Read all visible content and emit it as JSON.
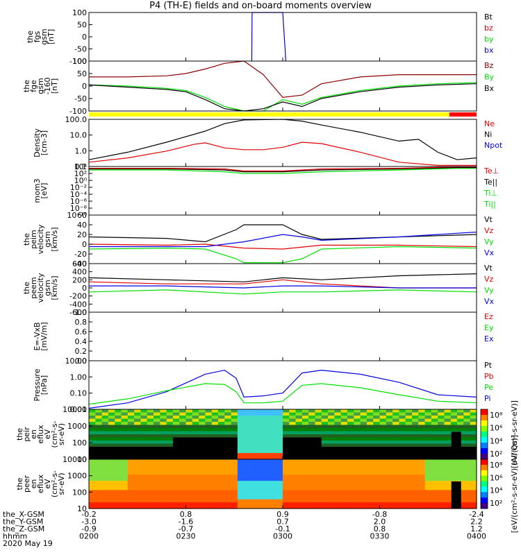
{
  "title": "P4 (TH-E) fields and on-board moments overview",
  "colors": {
    "black": "#000000",
    "red": "#e00000",
    "green": "#00e000",
    "blue": "#0000e0",
    "darkred": "#8b0000",
    "yellow": "#ffff00",
    "barRed": "#ff0000"
  },
  "chart_data": [
    {
      "id": "fgs",
      "type": "line",
      "ylabel": [
        "the",
        "fgs",
        "gsm",
        "[nT]"
      ],
      "ylim": [
        -100,
        100
      ],
      "yticks": [
        "100",
        "50",
        "0",
        "-50",
        "-100"
      ],
      "legend": [
        {
          "name": "Bt",
          "color": "#000000"
        },
        {
          "name": "bz",
          "color": "#e00000"
        },
        {
          "name": "by",
          "color": "#00e000"
        },
        {
          "name": "bx",
          "color": "#0000e0"
        }
      ],
      "series": [
        {
          "name": "bx",
          "color": "#0000e0",
          "x": [
            0.42,
            0.421,
            0.5,
            0.508
          ],
          "y": [
            -100,
            100,
            100,
            -100
          ]
        }
      ]
    },
    {
      "id": "fgs-1",
      "type": "line",
      "ylabel": [
        "the",
        "fge",
        "gsm",
        "-160",
        "[nT]"
      ],
      "ylim": [
        -120,
        100
      ],
      "yticks": [
        "100",
        "50",
        "0",
        "-50",
        "-100"
      ],
      "legend": [
        {
          "name": "Bz",
          "color": "#8b0000"
        },
        {
          "name": "By",
          "color": "#00e000"
        },
        {
          "name": "Bx",
          "color": "#000000"
        }
      ],
      "series": [
        {
          "name": "Bz",
          "color": "#8b0000",
          "x": [
            0,
            0.1,
            0.2,
            0.25,
            0.3,
            0.35,
            0.4,
            0.45,
            0.5,
            0.55,
            0.6,
            0.7,
            0.8,
            0.9,
            1
          ],
          "y": [
            30,
            30,
            35,
            45,
            65,
            90,
            100,
            40,
            -60,
            -50,
            0,
            30,
            40,
            40,
            40
          ]
        },
        {
          "name": "By",
          "color": "#00e000",
          "x": [
            0,
            0.1,
            0.2,
            0.25,
            0.3,
            0.35,
            0.4,
            0.45,
            0.5,
            0.55,
            0.6,
            0.7,
            0.8,
            0.9,
            1
          ],
          "y": [
            -5,
            -10,
            -20,
            -30,
            -60,
            -100,
            -120,
            -120,
            -70,
            -90,
            -60,
            -30,
            -10,
            0,
            5
          ]
        },
        {
          "name": "Bx",
          "color": "#000000",
          "x": [
            0,
            0.1,
            0.2,
            0.25,
            0.3,
            0.35,
            0.4,
            0.45,
            0.5,
            0.55,
            0.6,
            0.7,
            0.8,
            0.9,
            1
          ],
          "y": [
            -5,
            -15,
            -25,
            -35,
            -70,
            -110,
            -120,
            -110,
            -80,
            -100,
            -65,
            -35,
            -15,
            -5,
            0
          ]
        }
      ]
    },
    {
      "id": "density",
      "type": "line",
      "yscale": "log",
      "ylabel": [
        "Density",
        "[cm-3]"
      ],
      "ylim": [
        0.1,
        200
      ],
      "yticks": [
        "100.0",
        "10.0",
        "1.0",
        "0.1"
      ],
      "legend": [
        {
          "name": "Ne",
          "color": "#e00000"
        },
        {
          "name": "Ni",
          "color": "#000000"
        },
        {
          "name": "Npot",
          "color": "#0000e0"
        }
      ],
      "series": [
        {
          "name": "Ne",
          "color": "#e00000",
          "x": [
            0,
            0.1,
            0.2,
            0.27,
            0.3,
            0.35,
            0.4,
            0.45,
            0.5,
            0.55,
            0.6,
            0.7,
            0.8,
            0.9,
            1
          ],
          "y": [
            0.2,
            0.4,
            1.2,
            3.5,
            4.5,
            2.0,
            1.5,
            1.5,
            2.2,
            5.0,
            4.0,
            1.0,
            0.2,
            0.12,
            0.12
          ]
        },
        {
          "name": "Ni",
          "color": "#000000",
          "x": [
            0,
            0.1,
            0.2,
            0.3,
            0.35,
            0.4,
            0.5,
            0.55,
            0.6,
            0.7,
            0.8,
            0.85,
            0.9,
            0.95,
            1
          ],
          "y": [
            0.3,
            1.0,
            5.0,
            30,
            100,
            180,
            200,
            150,
            80,
            25,
            6,
            8,
            1.0,
            0.3,
            0.4
          ]
        }
      ]
    },
    {
      "id": "moments",
      "type": "line",
      "yscale": "log",
      "ylabel": [
        "mom3",
        "[eV]"
      ],
      "ylim": [
        1e-10,
        10000.0
      ],
      "yticks": [
        "10⁴",
        "10²",
        "10⁰",
        "10⁻²",
        "10⁻⁴",
        "10⁻⁶",
        "10⁻⁸",
        "10⁻¹⁰"
      ],
      "legend": [
        {
          "name": "Te⊥",
          "color": "#e00000"
        },
        {
          "name": "Te||",
          "color": "#000000"
        },
        {
          "name": "Ti⊥",
          "color": "#00e000"
        },
        {
          "name": "Ti||",
          "color": "#00e000"
        }
      ],
      "series": [
        {
          "name": "Ti||",
          "color": "#00e000",
          "x": [
            0,
            0.2,
            0.35,
            0.4,
            0.5,
            0.6,
            0.8,
            0.95,
            1
          ],
          "y": [
            1000,
            1000,
            300,
            100,
            100,
            300,
            1000,
            3000,
            3000
          ]
        },
        {
          "name": "Te||",
          "color": "#000000",
          "x": [
            0,
            0.2,
            0.35,
            0.4,
            0.5,
            0.6,
            0.8,
            0.95,
            1
          ],
          "y": [
            2000,
            2000,
            1000,
            300,
            300,
            1000,
            2000,
            5000,
            5000
          ]
        },
        {
          "name": "Te⊥",
          "color": "#e00000",
          "x": [
            0,
            0.2,
            0.35,
            0.4,
            0.5,
            0.6,
            0.8,
            0.95,
            1
          ],
          "y": [
            3000,
            3000,
            2000,
            500,
            500,
            2000,
            3000,
            8000,
            8000
          ]
        }
      ]
    },
    {
      "id": "peim",
      "type": "line",
      "ylabel": [
        "the",
        "peim",
        "velocity",
        "gsm",
        "[km/s]"
      ],
      "ylim": [
        -40,
        60
      ],
      "yticks": [
        "60",
        "40",
        "20",
        "0",
        "-20",
        "-40"
      ],
      "legend": [
        {
          "name": "Vt",
          "color": "#000000"
        },
        {
          "name": "Vz",
          "color": "#e00000"
        },
        {
          "name": "Vy",
          "color": "#00e000"
        },
        {
          "name": "Vx",
          "color": "#0000e0"
        }
      ],
      "series": [
        {
          "name": "Vt",
          "color": "#000000",
          "x": [
            0,
            0.2,
            0.3,
            0.38,
            0.4,
            0.5,
            0.55,
            0.6,
            0.8,
            1
          ],
          "y": [
            15,
            12,
            5,
            30,
            40,
            40,
            20,
            10,
            15,
            20
          ]
        },
        {
          "name": "Vz",
          "color": "#e00000",
          "x": [
            0,
            0.2,
            0.3,
            0.4,
            0.5,
            0.6,
            0.8,
            1
          ],
          "y": [
            0,
            -2,
            0,
            -8,
            -10,
            -2,
            -2,
            -5
          ]
        },
        {
          "name": "Vy",
          "color": "#00e000",
          "x": [
            0,
            0.2,
            0.3,
            0.38,
            0.4,
            0.5,
            0.55,
            0.6,
            0.8,
            1
          ],
          "y": [
            -10,
            -8,
            -10,
            -30,
            -38,
            -38,
            -30,
            -10,
            -5,
            -8
          ]
        },
        {
          "name": "Vx",
          "color": "#0000e0",
          "x": [
            0,
            0.2,
            0.3,
            0.4,
            0.5,
            0.55,
            0.6,
            0.8,
            1
          ],
          "y": [
            -5,
            -5,
            -5,
            5,
            20,
            15,
            8,
            15,
            25
          ]
        }
      ]
    },
    {
      "id": "peem",
      "type": "line",
      "ylabel": [
        "the",
        "peem",
        "velocity",
        "gsm",
        "[km/s]"
      ],
      "ylim": [
        -600,
        600
      ],
      "yticks": [
        "600",
        "400",
        "200",
        "0",
        "-200",
        "-400",
        "-600"
      ],
      "legend": [
        {
          "name": "Vt",
          "color": "#000000"
        },
        {
          "name": "Vz",
          "color": "#e00000"
        },
        {
          "name": "Vy",
          "color": "#00e000"
        },
        {
          "name": "Vx",
          "color": "#0000e0"
        }
      ],
      "series": [
        {
          "name": "Vt",
          "color": "#000000",
          "x": [
            0,
            0.2,
            0.4,
            0.5,
            0.6,
            0.8,
            1
          ],
          "y": [
            250,
            200,
            150,
            250,
            200,
            300,
            350
          ]
        },
        {
          "name": "Vz",
          "color": "#e00000",
          "x": [
            0,
            0.2,
            0.4,
            0.5,
            0.6,
            0.8,
            1
          ],
          "y": [
            150,
            100,
            100,
            200,
            100,
            0,
            0
          ]
        },
        {
          "name": "Vy",
          "color": "#00e000",
          "x": [
            0,
            0.2,
            0.4,
            0.5,
            0.6,
            0.8,
            1
          ],
          "y": [
            -100,
            -50,
            -150,
            -100,
            -100,
            -50,
            -100
          ]
        },
        {
          "name": "Vx",
          "color": "#0000e0",
          "x": [
            0,
            0.2,
            0.4,
            0.5,
            0.6,
            0.8,
            1
          ],
          "y": [
            50,
            50,
            0,
            50,
            50,
            0,
            0
          ]
        }
      ]
    },
    {
      "id": "efield",
      "type": "line",
      "ylabel": [
        "E=-VxB",
        "[mV/m]"
      ],
      "ylim": [
        0,
        1
      ],
      "yticks": [
        "1.0",
        "0.8",
        "0.6",
        "0.4",
        "0.2",
        "0.0"
      ],
      "legend": [
        {
          "name": "Ez",
          "color": "#e00000"
        },
        {
          "name": "Ey",
          "color": "#00e000"
        },
        {
          "name": "Ex",
          "color": "#0000e0"
        }
      ],
      "series": []
    },
    {
      "id": "pressure",
      "type": "line",
      "yscale": "log",
      "ylabel": [
        "Pressure",
        "[nPa]"
      ],
      "ylim": [
        0.005,
        20
      ],
      "yticks": [
        "10.00",
        "1.00",
        "0.10",
        "0.01"
      ],
      "legend": [
        {
          "name": "Pt",
          "color": "#000000"
        },
        {
          "name": "Pb",
          "color": "#e00000"
        },
        {
          "name": "Pe",
          "color": "#00e000"
        },
        {
          "name": "Pi",
          "color": "#0000e0"
        }
      ],
      "series": [
        {
          "name": "Pi",
          "color": "#0000e0",
          "x": [
            0,
            0.1,
            0.2,
            0.3,
            0.35,
            0.38,
            0.4,
            0.45,
            0.5,
            0.55,
            0.6,
            0.7,
            0.8,
            0.9,
            1
          ],
          "y": [
            0.006,
            0.015,
            0.1,
            2.0,
            4.0,
            1.0,
            0.04,
            0.05,
            0.08,
            2.5,
            4.0,
            2.0,
            0.5,
            0.06,
            0.04
          ]
        },
        {
          "name": "Pe",
          "color": "#00e000",
          "x": [
            0,
            0.1,
            0.2,
            0.3,
            0.35,
            0.38,
            0.4,
            0.45,
            0.5,
            0.55,
            0.6,
            0.7,
            0.8,
            0.9,
            1
          ],
          "y": [
            0.012,
            0.03,
            0.12,
            0.4,
            0.35,
            0.1,
            0.015,
            0.015,
            0.02,
            0.3,
            0.4,
            0.2,
            0.06,
            0.02,
            0.015
          ]
        }
      ]
    },
    {
      "id": "peir",
      "type": "heatmap",
      "ylabel": [
        "the",
        "peir",
        "en",
        "eflux",
        "eV",
        "(cm²-s-",
        "sr-eV)"
      ],
      "yscale": "log",
      "ylim": [
        5,
        20000
      ],
      "yticks": [
        "10000",
        "1000",
        "100",
        "10"
      ],
      "colorbar": {
        "label": "[eV/(cm²-s-sr-eV)]",
        "ticks": [
          "10⁸",
          "10⁶",
          "10⁴",
          "10²"
        ]
      },
      "legend": []
    },
    {
      "id": "peer",
      "type": "heatmap",
      "ylabel": [
        "the",
        "peer",
        "en",
        "eflux",
        "eV",
        "(cm²-s-",
        "sr-eV)"
      ],
      "yscale": "log",
      "ylim": [
        5,
        20000
      ],
      "yticks": [
        "10000",
        "1000",
        "100",
        "10"
      ],
      "colorbar": {
        "label": "[eV/(cm²-s-sr-eV) (All Qs)]",
        "ticks": [
          "10⁸",
          "10⁶",
          "10⁴",
          "10²"
        ]
      },
      "legend": []
    }
  ],
  "bottom_axis": {
    "row_labels": [
      "the_X-GSM",
      "the_Y-GSM",
      "the_Z-GSM",
      "hhmm",
      "2020 May 19"
    ],
    "columns": [
      {
        "x": 0.0,
        "vals": [
          "-0.2",
          "-3.0",
          "-0.9",
          "0200"
        ]
      },
      {
        "x": 0.25,
        "vals": [
          "0.8",
          "-1.6",
          "-0.7",
          "0230"
        ]
      },
      {
        "x": 0.5,
        "vals": [
          "0.9",
          "0.7",
          "-0.1",
          "0300"
        ]
      },
      {
        "x": 0.75,
        "vals": [
          "-0.8",
          "2.0",
          "0.8",
          "0330"
        ]
      },
      {
        "x": 1.0,
        "vals": [
          "-2.4",
          "2.2",
          "1.2",
          "0400"
        ]
      }
    ]
  }
}
